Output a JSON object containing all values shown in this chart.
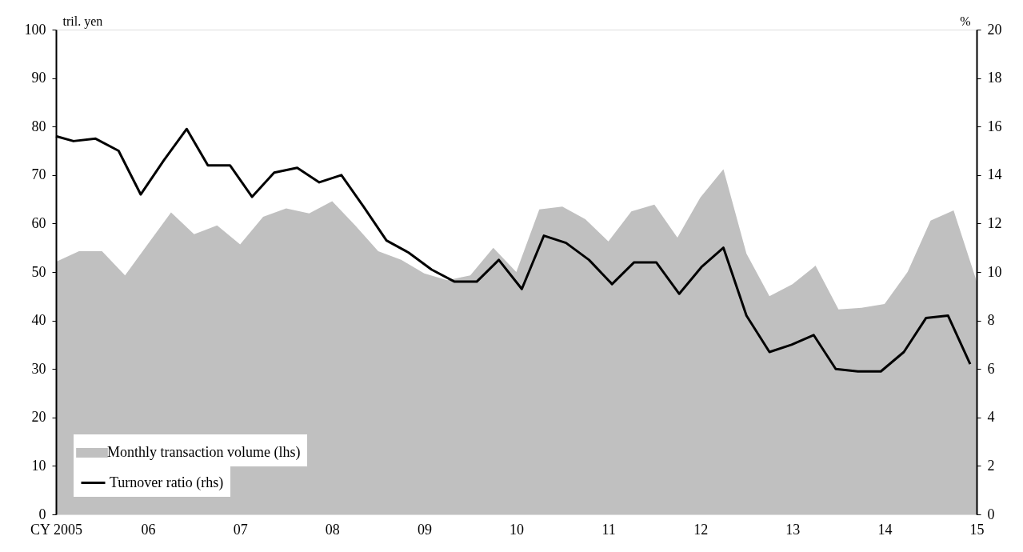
{
  "chart_data": {
    "type": "area",
    "ylabel": "tril. yen",
    "y2label": "%",
    "xlim": [
      2005,
      2015
    ],
    "xticks": [
      {
        "value": 2005,
        "label": "CY 2005"
      },
      {
        "value": 2006,
        "label": "06"
      },
      {
        "value": 2007,
        "label": "07"
      },
      {
        "value": 2008,
        "label": "08"
      },
      {
        "value": 2009,
        "label": "09"
      },
      {
        "value": 2010,
        "label": "10"
      },
      {
        "value": 2011,
        "label": "11"
      },
      {
        "value": 2012,
        "label": "12"
      },
      {
        "value": 2013,
        "label": "13"
      },
      {
        "value": 2014,
        "label": "14"
      },
      {
        "value": 2015,
        "label": "15"
      }
    ],
    "ylim": [
      0,
      100
    ],
    "yticks": [
      0,
      10,
      20,
      30,
      40,
      50,
      60,
      70,
      80,
      90,
      100
    ],
    "y2lim": [
      0,
      20
    ],
    "y2ticks": [
      0,
      2,
      4,
      6,
      8,
      10,
      12,
      14,
      16,
      18,
      20
    ],
    "grid": false,
    "legend": "bottom left",
    "marker": "none",
    "line_style": "solid",
    "series": [
      {
        "name": "Monthly transaction volume (lhs)",
        "color": "#c0c0c0",
        "x": [
          2005.0,
          2005.25,
          2005.5,
          2005.75,
          2006.0,
          2006.25,
          2006.5,
          2006.75,
          2007.0,
          2007.25,
          2007.5,
          2007.75,
          2008.0,
          2008.25,
          2008.5,
          2008.75,
          2009.0,
          2009.25,
          2009.5,
          2009.75,
          2010.0,
          2010.25,
          2010.5,
          2010.75,
          2011.0,
          2011.25,
          2011.5,
          2011.75,
          2012.0,
          2012.25,
          2012.5,
          2012.75,
          2013.0,
          2013.25,
          2013.5,
          2013.75,
          2014.0,
          2014.25,
          2014.5,
          2014.75,
          2015.0
        ],
        "values": [
          52.1,
          54.3,
          54.3,
          49.3,
          55.8,
          62.3,
          57.8,
          59.6,
          55.7,
          61.4,
          63.1,
          62.1,
          64.6,
          59.6,
          54.3,
          52.5,
          49.7,
          48.3,
          49.3,
          55.0,
          50.0,
          62.9,
          63.5,
          60.9,
          56.3,
          62.5,
          63.9,
          57.1,
          65.4,
          71.2,
          53.8,
          45.0,
          47.5,
          51.3,
          42.3,
          42.6,
          43.4,
          50.0,
          60.6,
          62.7,
          48.1
        ]
      },
      {
        "name": "Turnover ratio (rhs)",
        "type": "line",
        "axis": "y2",
        "color": "#000000",
        "x": [
          2005.0,
          2005.19,
          2005.43,
          2005.68,
          2005.92,
          2006.17,
          2006.42,
          2006.65,
          2006.89,
          2007.13,
          2007.37,
          2007.62,
          2007.86,
          2008.1,
          2008.34,
          2008.59,
          2008.83,
          2009.08,
          2009.33,
          2009.57,
          2009.81,
          2010.06,
          2010.3,
          2010.54,
          2010.79,
          2011.04,
          2011.28,
          2011.52,
          2011.77,
          2012.01,
          2012.25,
          2012.5,
          2012.75,
          2012.99,
          2013.23,
          2013.47,
          2013.71,
          2013.96,
          2014.21,
          2014.45,
          2014.69,
          2014.93
        ],
        "values": [
          15.6,
          15.4,
          15.5,
          15.0,
          13.2,
          14.6,
          15.9,
          14.4,
          14.4,
          13.1,
          14.1,
          14.3,
          13.7,
          14.0,
          12.7,
          11.3,
          10.8,
          10.1,
          9.6,
          9.6,
          10.5,
          9.3,
          11.5,
          11.2,
          10.5,
          9.5,
          10.4,
          10.4,
          9.1,
          10.2,
          11.0,
          8.2,
          6.7,
          7.0,
          7.4,
          6.0,
          5.9,
          5.9,
          6.7,
          8.1,
          8.2,
          6.2
        ]
      }
    ]
  }
}
